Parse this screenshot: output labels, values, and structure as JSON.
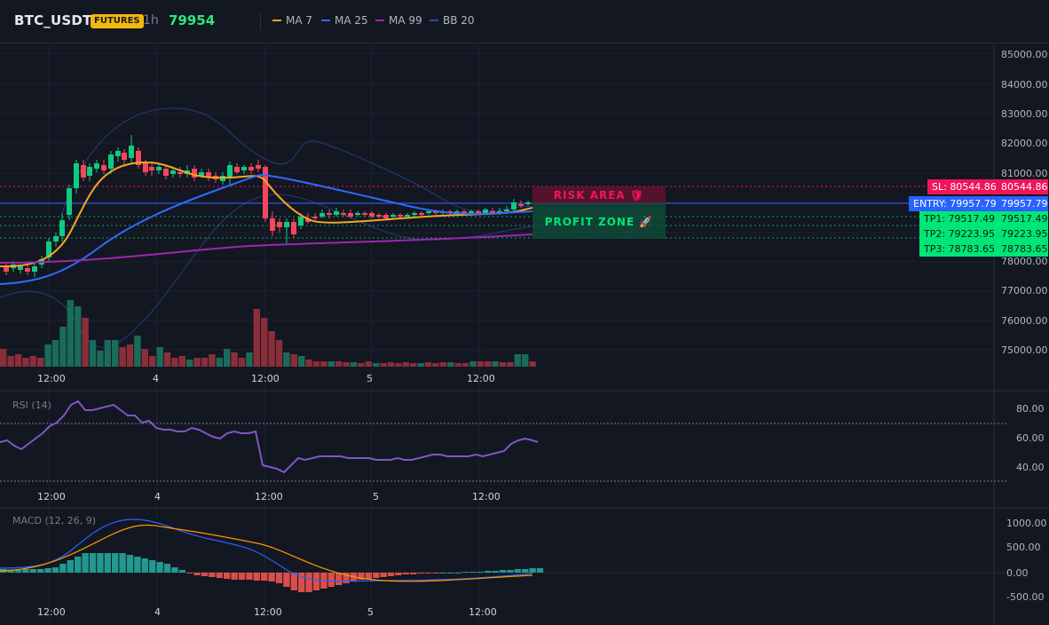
{
  "header": {
    "symbol": "BTC_USDT",
    "badge": "FUTURES",
    "interval": "1h",
    "last_price": "79954",
    "indicators": [
      {
        "name": "MA 7",
        "color": "#f5a623"
      },
      {
        "name": "MA 25",
        "color": "#2962ff"
      },
      {
        "name": "MA 99",
        "color": "#9c27b0"
      },
      {
        "name": "BB 20",
        "color": "#2b4a9b"
      }
    ]
  },
  "colors": {
    "up": "#0ecb81",
    "down": "#f6465d",
    "ma7": "#f5a623",
    "ma25": "#2f6bff",
    "ma99": "#9c27b0",
    "bb": "#243c7a",
    "sl": "#f0145a",
    "entry": "#2962ff",
    "tp": "#00e676",
    "rsi": "#7e57c2",
    "macd": "#2962ff",
    "signal": "#ff9800"
  },
  "price_axis": {
    "ticks": [
      "85000.00",
      "84000.00",
      "83000.00",
      "82000.00",
      "81000.00",
      "78000.00",
      "77000.00",
      "76000.00",
      "75000.00"
    ]
  },
  "time_axis": {
    "ticks": [
      "12:00",
      "4",
      "12:00",
      "5",
      "12:00"
    ]
  },
  "trade_levels": {
    "sl": {
      "left": "SL: 80544.86",
      "right": "80544.86"
    },
    "entry": {
      "left": "ENTRY: 79957.79",
      "right": "79957.79"
    },
    "tp1": {
      "left": "TP1: 79517.49",
      "right": "79517.49"
    },
    "tp2": {
      "left": "TP2: 79223.95",
      "right": "79223.95"
    },
    "tp3": {
      "left": "TP3: 78783.65",
      "right": "78783.65"
    }
  },
  "zones": {
    "risk": "RISK AREA 🛡",
    "profit": "PROFIT ZONE 🚀"
  },
  "rsi": {
    "label": "RSI (14)",
    "ticks": [
      "80.00",
      "60.00",
      "40.00"
    ]
  },
  "macd": {
    "label": "MACD (12, 26, 9)",
    "ticks": [
      "1000.00",
      "500.00",
      "0.00",
      "-500.00"
    ]
  }
}
